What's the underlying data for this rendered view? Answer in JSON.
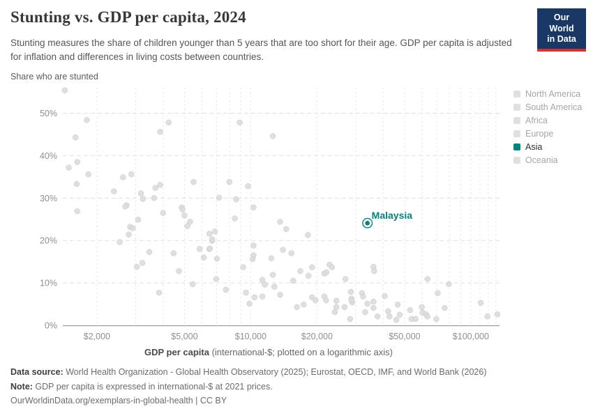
{
  "header": {
    "title": "Stunting vs. GDP per capita, 2024",
    "subtitle": "Stunting measures the share of children younger than 5 years that are too short for their age. GDP per capita is adjusted for inflation and differences in living costs between countries.",
    "logo": {
      "line1": "Our World",
      "line2": "in Data",
      "bg": "#1a3866",
      "accent": "#d8302c"
    }
  },
  "unit_label": "Share who are stunted",
  "legend": {
    "active_color": "#00847e",
    "inactive_color": "#e0e0e0",
    "items": [
      {
        "label": "North America",
        "active": false
      },
      {
        "label": "South America",
        "active": false
      },
      {
        "label": "Africa",
        "active": false
      },
      {
        "label": "Europe",
        "active": false
      },
      {
        "label": "Asia",
        "active": true
      },
      {
        "label": "Oceania",
        "active": false
      }
    ]
  },
  "chart_data": {
    "type": "scatter",
    "title": "Stunting vs. GDP per capita, 2024",
    "xlabel_bold": "GDP per capita",
    "xlabel_rest": " (international-$; plotted on a logarithmic axis)",
    "ylabel": "Share who are stunted",
    "x_scale": "log",
    "grid": true,
    "xlim": [
      1400,
      135000
    ],
    "ylim": [
      0,
      56
    ],
    "x_ticks": [
      2000,
      5000,
      10000,
      20000,
      50000,
      100000
    ],
    "x_tick_labels": [
      "$2,000",
      "$5,000",
      "$10,000",
      "$20,000",
      "$50,000",
      "$100,000"
    ],
    "x_gridlines": [
      2000,
      3000,
      4000,
      5000,
      6000,
      7000,
      8000,
      9000,
      10000,
      20000,
      30000,
      40000,
      50000,
      60000,
      70000,
      80000,
      90000,
      100000,
      110000,
      120000,
      130000
    ],
    "y_ticks": [
      0,
      10,
      20,
      30,
      40,
      50
    ],
    "y_tick_suffix": "%",
    "point_color": "#dcdcdc",
    "point_stroke": "#c9c9c9",
    "highlight": {
      "name": "Malaysia",
      "gdp": 33900,
      "stunting": 24.1,
      "color": "#00847e"
    },
    "points": [
      [
        1430,
        55.4
      ],
      [
        1800,
        48.4
      ],
      [
        4240,
        47.8
      ],
      [
        1600,
        44.3
      ],
      [
        3880,
        45.6
      ],
      [
        1630,
        38.5
      ],
      [
        1490,
        37.2
      ],
      [
        1830,
        35.6
      ],
      [
        1620,
        33.3
      ],
      [
        2630,
        34.9
      ],
      [
        2870,
        35.6
      ],
      [
        2390,
        31.6
      ],
      [
        3170,
        31.1
      ],
      [
        3690,
        32.4
      ],
      [
        3880,
        33.1
      ],
      [
        3240,
        29.8
      ],
      [
        3640,
        30.0
      ],
      [
        5500,
        33.8
      ],
      [
        2730,
        28.3
      ],
      [
        4860,
        27.8
      ],
      [
        8910,
        47.8
      ],
      [
        12600,
        44.6
      ],
      [
        8000,
        33.8
      ],
      [
        9720,
        32.8
      ],
      [
        7180,
        30.1
      ],
      [
        8590,
        29.7
      ],
      [
        1630,
        26.9
      ],
      [
        2690,
        28.0
      ],
      [
        4000,
        26.5
      ],
      [
        4900,
        27.3
      ],
      [
        5000,
        25.9
      ],
      [
        3080,
        24.9
      ],
      [
        5300,
        24.4
      ],
      [
        2830,
        23.2
      ],
      [
        2910,
        22.9
      ],
      [
        5150,
        23.4
      ],
      [
        2790,
        21.4
      ],
      [
        6490,
        21.6
      ],
      [
        2540,
        19.6
      ],
      [
        6680,
        19.9
      ],
      [
        3460,
        17.3
      ],
      [
        4460,
        17.0
      ],
      [
        5860,
        18.0
      ],
      [
        6490,
        18.0
      ],
      [
        6120,
        16.0
      ],
      [
        3220,
        14.7
      ],
      [
        3040,
        13.8
      ],
      [
        4720,
        12.8
      ],
      [
        5450,
        9.7
      ],
      [
        3830,
        7.7
      ],
      [
        10300,
        27.8
      ],
      [
        8470,
        25.2
      ],
      [
        13600,
        24.4
      ],
      [
        14500,
        22.7
      ],
      [
        6870,
        22.1
      ],
      [
        6680,
        20.3
      ],
      [
        18200,
        21.3
      ],
      [
        10300,
        18.8
      ],
      [
        14000,
        17.8
      ],
      [
        6530,
        18.1
      ],
      [
        15300,
        17.0
      ],
      [
        10300,
        16.5
      ],
      [
        12400,
        15.8
      ],
      [
        7020,
        15.7
      ],
      [
        10200,
        15.6
      ],
      [
        9240,
        13.7
      ],
      [
        22800,
        14.3
      ],
      [
        23400,
        13.7
      ],
      [
        16800,
        12.8
      ],
      [
        19000,
        13.7
      ],
      [
        6970,
        10.9
      ],
      [
        12600,
        11.9
      ],
      [
        18300,
        11.7
      ],
      [
        21600,
        12.2
      ],
      [
        22100,
        12.5
      ],
      [
        15600,
        10.5
      ],
      [
        11300,
        10.7
      ],
      [
        11600,
        9.6
      ],
      [
        12800,
        9.1
      ],
      [
        7710,
        8.4
      ],
      [
        9510,
        7.7
      ],
      [
        13600,
        7.2
      ],
      [
        10400,
        6.6
      ],
      [
        11300,
        6.8
      ],
      [
        19000,
        6.6
      ],
      [
        19700,
        5.9
      ],
      [
        21600,
        6.8
      ],
      [
        22000,
        5.9
      ],
      [
        9860,
        5.1
      ],
      [
        17400,
        4.9
      ],
      [
        16200,
        4.3
      ],
      [
        24500,
        5.8
      ],
      [
        24500,
        4.3
      ],
      [
        24100,
        3.1
      ],
      [
        26900,
        10.9
      ],
      [
        28500,
        7.9
      ],
      [
        28700,
        6.3
      ],
      [
        28900,
        5.4
      ],
      [
        26700,
        4.3
      ],
      [
        28300,
        1.5
      ],
      [
        36100,
        13.8
      ],
      [
        36400,
        12.8
      ],
      [
        63500,
        10.9
      ],
      [
        79400,
        9.7
      ],
      [
        32000,
        7.6
      ],
      [
        32400,
        6.8
      ],
      [
        28700,
        5.9
      ],
      [
        40600,
        6.9
      ],
      [
        33900,
        5.1
      ],
      [
        36100,
        4.1
      ],
      [
        36100,
        5.6
      ],
      [
        33100,
        3.1
      ],
      [
        37700,
        2.1
      ],
      [
        42100,
        3.3
      ],
      [
        42700,
        2.1
      ],
      [
        46500,
        4.9
      ],
      [
        47500,
        2.5
      ],
      [
        45900,
        1.3
      ],
      [
        53000,
        3.6
      ],
      [
        53800,
        1.5
      ],
      [
        56100,
        1.5
      ],
      [
        59900,
        4.3
      ],
      [
        60300,
        3.0
      ],
      [
        62500,
        2.6
      ],
      [
        63500,
        2.1
      ],
      [
        69700,
        1.5
      ],
      [
        70700,
        7.6
      ],
      [
        76000,
        4.1
      ],
      [
        111000,
        5.3
      ],
      [
        119000,
        2.1
      ],
      [
        132000,
        2.6
      ]
    ]
  },
  "footer": {
    "source_label": "Data source:",
    "source_text": " World Health Organization - Global Health Observatory (2025); Eurostat, OECD, IMF, and World Bank (2026)",
    "note_label": "Note:",
    "note_text": " GDP per capita is expressed in international-$ at 2021 prices.",
    "link_line": "OurWorldinData.org/exemplars-in-global-health | CC BY"
  }
}
